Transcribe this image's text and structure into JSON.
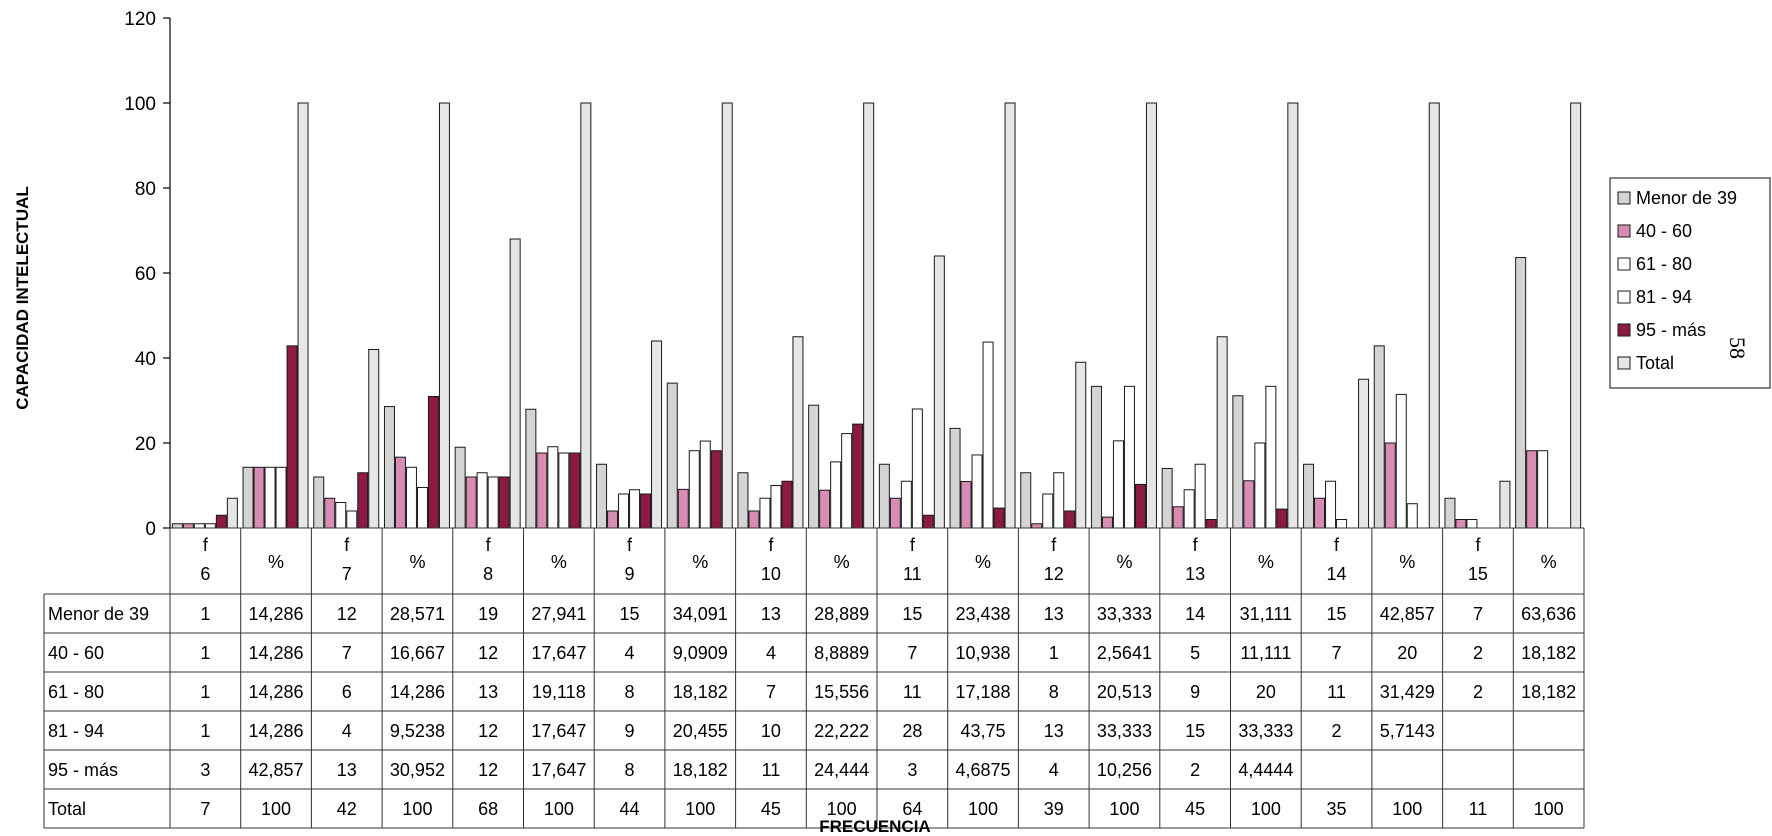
{
  "page_number": "58",
  "chart_data": {
    "type": "bar",
    "title": "",
    "xlabel": "FRECUENCIA",
    "ylabel": "CAPACIDAD INTELECTUAL",
    "ylim": [
      0,
      120
    ],
    "yticks": [
      "0",
      "20",
      "40",
      "60",
      "80",
      "100",
      "120"
    ],
    "legend_position": "right",
    "grid": false,
    "categories": [
      {
        "top": "f",
        "bottom": "6"
      },
      {
        "top": "",
        "bottom": "%"
      },
      {
        "top": "f",
        "bottom": "7"
      },
      {
        "top": "",
        "bottom": "%"
      },
      {
        "top": "f",
        "bottom": "8"
      },
      {
        "top": "",
        "bottom": "%"
      },
      {
        "top": "f",
        "bottom": "9"
      },
      {
        "top": "",
        "bottom": "%"
      },
      {
        "top": "f",
        "bottom": "10"
      },
      {
        "top": "",
        "bottom": "%"
      },
      {
        "top": "f",
        "bottom": "11"
      },
      {
        "top": "",
        "bottom": "%"
      },
      {
        "top": "f",
        "bottom": "12"
      },
      {
        "top": "",
        "bottom": "%"
      },
      {
        "top": "f",
        "bottom": "13"
      },
      {
        "top": "",
        "bottom": "%"
      },
      {
        "top": "f",
        "bottom": "14"
      },
      {
        "top": "",
        "bottom": "%"
      },
      {
        "top": "f",
        "bottom": "15"
      },
      {
        "top": "",
        "bottom": "%"
      }
    ],
    "series": [
      {
        "name": "Menor de 39",
        "color": "#d4d4d4",
        "values": [
          1,
          14.286,
          12,
          28.571,
          19,
          27.941,
          15,
          34.091,
          13,
          28.889,
          15,
          23.438,
          13,
          33.333,
          14,
          31.111,
          15,
          42.857,
          7,
          63.636
        ],
        "labels": [
          "1",
          "14,286",
          "12",
          "28,571",
          "19",
          "27,941",
          "15",
          "34,091",
          "13",
          "28,889",
          "15",
          "23,438",
          "13",
          "33,333",
          "14",
          "31,111",
          "15",
          "42,857",
          "7",
          "63,636"
        ]
      },
      {
        "name": "40 - 60",
        "color": "#d98cb3",
        "values": [
          1,
          14.286,
          7,
          16.667,
          12,
          17.647,
          4,
          9.0909,
          4,
          8.8889,
          7,
          10.938,
          1,
          2.5641,
          5,
          11.111,
          7,
          20,
          2,
          18.182
        ],
        "labels": [
          "1",
          "14,286",
          "7",
          "16,667",
          "12",
          "17,647",
          "4",
          "9,0909",
          "4",
          "8,8889",
          "7",
          "10,938",
          "1",
          "2,5641",
          "5",
          "11,111",
          "7",
          "20",
          "2",
          "18,182"
        ]
      },
      {
        "name": "61 - 80",
        "color": "#ffffff",
        "values": [
          1,
          14.286,
          6,
          14.286,
          13,
          19.118,
          8,
          18.182,
          7,
          15.556,
          11,
          17.188,
          8,
          20.513,
          9,
          20,
          11,
          31.429,
          2,
          18.182
        ],
        "labels": [
          "1",
          "14,286",
          "6",
          "14,286",
          "13",
          "19,118",
          "8",
          "18,182",
          "7",
          "15,556",
          "11",
          "17,188",
          "8",
          "20,513",
          "9",
          "20",
          "11",
          "31,429",
          "2",
          "18,182"
        ]
      },
      {
        "name": "81 - 94",
        "color": "#ffffff",
        "values": [
          1,
          14.286,
          4,
          9.5238,
          12,
          17.647,
          9,
          20.455,
          10,
          22.222,
          28,
          43.75,
          13,
          33.333,
          15,
          33.333,
          2,
          5.7143,
          null,
          null
        ],
        "labels": [
          "1",
          "14,286",
          "4",
          "9,5238",
          "12",
          "17,647",
          "9",
          "20,455",
          "10",
          "22,222",
          "28",
          "43,75",
          "13",
          "33,333",
          "15",
          "33,333",
          "2",
          "5,7143",
          "",
          ""
        ]
      },
      {
        "name": "95 - más",
        "color": "#8c1a45",
        "values": [
          3,
          42.857,
          13,
          30.952,
          12,
          17.647,
          8,
          18.182,
          11,
          24.444,
          3,
          4.6875,
          4,
          10.256,
          2,
          4.4444,
          null,
          null,
          null,
          null
        ],
        "labels": [
          "3",
          "42,857",
          "13",
          "30,952",
          "12",
          "17,647",
          "8",
          "18,182",
          "11",
          "24,444",
          "3",
          "4,6875",
          "4",
          "10,256",
          "2",
          "4,4444",
          "",
          "",
          "",
          ""
        ]
      },
      {
        "name": "Total",
        "color": "#e6e6e6",
        "values": [
          7,
          100,
          42,
          100,
          68,
          100,
          44,
          100,
          45,
          100,
          64,
          100,
          39,
          100,
          45,
          100,
          35,
          100,
          11,
          100
        ],
        "labels": [
          "7",
          "100",
          "42",
          "100",
          "68",
          "100",
          "44",
          "100",
          "45",
          "100",
          "64",
          "100",
          "39",
          "100",
          "45",
          "100",
          "35",
          "100",
          "11",
          "100"
        ]
      }
    ]
  }
}
